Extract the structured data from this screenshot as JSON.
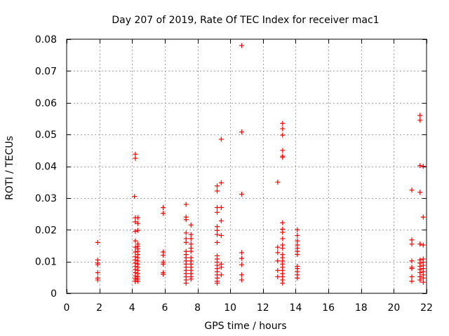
{
  "chart_data": {
    "type": "scatter",
    "title": "Day 207 of 2019, Rate Of TEC Index for receiver mac1",
    "xlabel": "GPS time / hours",
    "ylabel": "ROTI / TECUs",
    "xlim": [
      0,
      22
    ],
    "ylim": [
      0,
      0.08
    ],
    "xticks": [
      0,
      2,
      4,
      6,
      8,
      10,
      12,
      14,
      16,
      18,
      20,
      22
    ],
    "xtick_labels": [
      "0",
      "2",
      "4",
      "6",
      "8",
      "10",
      "12",
      "14",
      "16",
      "18",
      "20",
      "22"
    ],
    "yticks": [
      0,
      0.01,
      0.02,
      0.03,
      0.04,
      0.05,
      0.06,
      0.07,
      0.08
    ],
    "ytick_labels": [
      "0",
      "0.01",
      "0.02",
      "0.03",
      "0.04",
      "0.05",
      "0.06",
      "0.07",
      "0.08"
    ],
    "grid": true,
    "marker": "+",
    "color": "#ff0000",
    "series": [
      {
        "name": "mac1",
        "points": [
          [
            1.9,
            0.016
          ],
          [
            1.9,
            0.0105
          ],
          [
            1.9,
            0.0095
          ],
          [
            1.9,
            0.009
          ],
          [
            1.9,
            0.0065
          ],
          [
            1.9,
            0.0048
          ],
          [
            1.9,
            0.0042
          ],
          [
            4.2,
            0.0438
          ],
          [
            4.2,
            0.0425
          ],
          [
            4.15,
            0.0305
          ],
          [
            4.2,
            0.0238
          ],
          [
            4.2,
            0.0225
          ],
          [
            4.2,
            0.0195
          ],
          [
            4.2,
            0.0165
          ],
          [
            4.2,
            0.0145
          ],
          [
            4.2,
            0.013
          ],
          [
            4.2,
            0.0115
          ],
          [
            4.2,
            0.0105
          ],
          [
            4.2,
            0.0095
          ],
          [
            4.2,
            0.0085
          ],
          [
            4.2,
            0.0075
          ],
          [
            4.2,
            0.0065
          ],
          [
            4.2,
            0.0055
          ],
          [
            4.2,
            0.0048
          ],
          [
            4.2,
            0.0042
          ],
          [
            4.2,
            0.0037
          ],
          [
            4.35,
            0.0238
          ],
          [
            4.35,
            0.022
          ],
          [
            4.35,
            0.0198
          ],
          [
            4.35,
            0.0155
          ],
          [
            4.35,
            0.0148
          ],
          [
            4.35,
            0.014
          ],
          [
            4.35,
            0.0132
          ],
          [
            4.35,
            0.0122
          ],
          [
            4.35,
            0.0112
          ],
          [
            4.35,
            0.0102
          ],
          [
            4.35,
            0.0092
          ],
          [
            4.35,
            0.0082
          ],
          [
            4.35,
            0.0072
          ],
          [
            4.35,
            0.0062
          ],
          [
            4.35,
            0.0052
          ],
          [
            4.35,
            0.0045
          ],
          [
            4.35,
            0.0038
          ],
          [
            5.9,
            0.027
          ],
          [
            5.9,
            0.0252
          ],
          [
            5.9,
            0.013
          ],
          [
            5.9,
            0.012
          ],
          [
            5.9,
            0.0098
          ],
          [
            5.9,
            0.0092
          ],
          [
            5.9,
            0.0065
          ],
          [
            5.9,
            0.006
          ],
          [
            7.3,
            0.028
          ],
          [
            7.3,
            0.024
          ],
          [
            7.3,
            0.0232
          ],
          [
            7.3,
            0.019
          ],
          [
            7.3,
            0.0172
          ],
          [
            7.3,
            0.016
          ],
          [
            7.3,
            0.0132
          ],
          [
            7.3,
            0.0122
          ],
          [
            7.3,
            0.0112
          ],
          [
            7.3,
            0.0102
          ],
          [
            7.3,
            0.0092
          ],
          [
            7.3,
            0.0082
          ],
          [
            7.3,
            0.0072
          ],
          [
            7.3,
            0.0062
          ],
          [
            7.3,
            0.0052
          ],
          [
            7.3,
            0.0042
          ],
          [
            7.3,
            0.0032
          ],
          [
            7.6,
            0.0215
          ],
          [
            7.6,
            0.0185
          ],
          [
            7.6,
            0.0172
          ],
          [
            7.6,
            0.0155
          ],
          [
            7.6,
            0.0142
          ],
          [
            7.6,
            0.0132
          ],
          [
            7.6,
            0.0112
          ],
          [
            7.6,
            0.0102
          ],
          [
            7.6,
            0.0092
          ],
          [
            7.6,
            0.0082
          ],
          [
            7.6,
            0.0072
          ],
          [
            7.6,
            0.0062
          ],
          [
            7.6,
            0.0052
          ],
          [
            7.6,
            0.0045
          ],
          [
            9.2,
            0.0338
          ],
          [
            9.2,
            0.0322
          ],
          [
            9.2,
            0.027
          ],
          [
            9.2,
            0.0255
          ],
          [
            9.2,
            0.021
          ],
          [
            9.2,
            0.0198
          ],
          [
            9.2,
            0.0185
          ],
          [
            9.2,
            0.016
          ],
          [
            9.2,
            0.0118
          ],
          [
            9.2,
            0.0108
          ],
          [
            9.2,
            0.0098
          ],
          [
            9.2,
            0.0088
          ],
          [
            9.2,
            0.0078
          ],
          [
            9.2,
            0.0068
          ],
          [
            9.2,
            0.0058
          ],
          [
            9.2,
            0.0048
          ],
          [
            9.2,
            0.0038
          ],
          [
            9.2,
            0.0032
          ],
          [
            9.45,
            0.0485
          ],
          [
            9.45,
            0.0348
          ],
          [
            9.45,
            0.027
          ],
          [
            9.45,
            0.0228
          ],
          [
            9.45,
            0.0182
          ],
          [
            9.45,
            0.0092
          ],
          [
            9.45,
            0.0082
          ],
          [
            9.45,
            0.0058
          ],
          [
            10.7,
            0.078
          ],
          [
            10.7,
            0.0508
          ],
          [
            10.7,
            0.0312
          ],
          [
            10.7,
            0.0128
          ],
          [
            10.7,
            0.011
          ],
          [
            10.7,
            0.009
          ],
          [
            10.7,
            0.0058
          ],
          [
            10.7,
            0.0042
          ],
          [
            12.9,
            0.035
          ],
          [
            12.9,
            0.0145
          ],
          [
            12.9,
            0.0128
          ],
          [
            12.9,
            0.0102
          ],
          [
            12.9,
            0.0072
          ],
          [
            12.9,
            0.0052
          ],
          [
            13.2,
            0.0535
          ],
          [
            13.2,
            0.0518
          ],
          [
            13.2,
            0.0498
          ],
          [
            13.2,
            0.045
          ],
          [
            13.2,
            0.0432
          ],
          [
            13.2,
            0.0428
          ],
          [
            13.2,
            0.0222
          ],
          [
            13.2,
            0.0202
          ],
          [
            13.2,
            0.0192
          ],
          [
            13.2,
            0.0172
          ],
          [
            13.2,
            0.0152
          ],
          [
            13.2,
            0.0142
          ],
          [
            13.2,
            0.0122
          ],
          [
            13.2,
            0.0112
          ],
          [
            13.2,
            0.0102
          ],
          [
            13.2,
            0.0092
          ],
          [
            13.2,
            0.0082
          ],
          [
            13.2,
            0.0072
          ],
          [
            13.2,
            0.0062
          ],
          [
            13.2,
            0.0052
          ],
          [
            13.2,
            0.0042
          ],
          [
            13.2,
            0.0032
          ],
          [
            14.1,
            0.02
          ],
          [
            14.1,
            0.0182
          ],
          [
            14.1,
            0.0165
          ],
          [
            14.1,
            0.0152
          ],
          [
            14.1,
            0.0142
          ],
          [
            14.1,
            0.0132
          ],
          [
            14.1,
            0.0122
          ],
          [
            14.1,
            0.0085
          ],
          [
            14.1,
            0.0078
          ],
          [
            14.1,
            0.0068
          ],
          [
            14.1,
            0.0058
          ],
          [
            14.1,
            0.0048
          ],
          [
            21.1,
            0.0325
          ],
          [
            21.1,
            0.0168
          ],
          [
            21.1,
            0.0155
          ],
          [
            21.1,
            0.0102
          ],
          [
            21.1,
            0.0082
          ],
          [
            21.1,
            0.0078
          ],
          [
            21.1,
            0.0052
          ],
          [
            21.1,
            0.0038
          ],
          [
            21.6,
            0.056
          ],
          [
            21.6,
            0.0545
          ],
          [
            21.6,
            0.0402
          ],
          [
            21.6,
            0.0318
          ],
          [
            21.6,
            0.0155
          ],
          [
            21.6,
            0.0105
          ],
          [
            21.6,
            0.0095
          ],
          [
            21.6,
            0.0085
          ],
          [
            21.6,
            0.0075
          ],
          [
            21.6,
            0.0065
          ],
          [
            21.6,
            0.0052
          ],
          [
            21.6,
            0.0042
          ],
          [
            21.8,
            0.04
          ],
          [
            21.8,
            0.024
          ],
          [
            21.8,
            0.0152
          ],
          [
            21.8,
            0.0108
          ],
          [
            21.8,
            0.0098
          ],
          [
            21.8,
            0.0088
          ],
          [
            21.8,
            0.0078
          ],
          [
            21.8,
            0.0068
          ],
          [
            21.8,
            0.0058
          ],
          [
            21.8,
            0.0048
          ],
          [
            21.8,
            0.0035
          ]
        ]
      }
    ]
  }
}
